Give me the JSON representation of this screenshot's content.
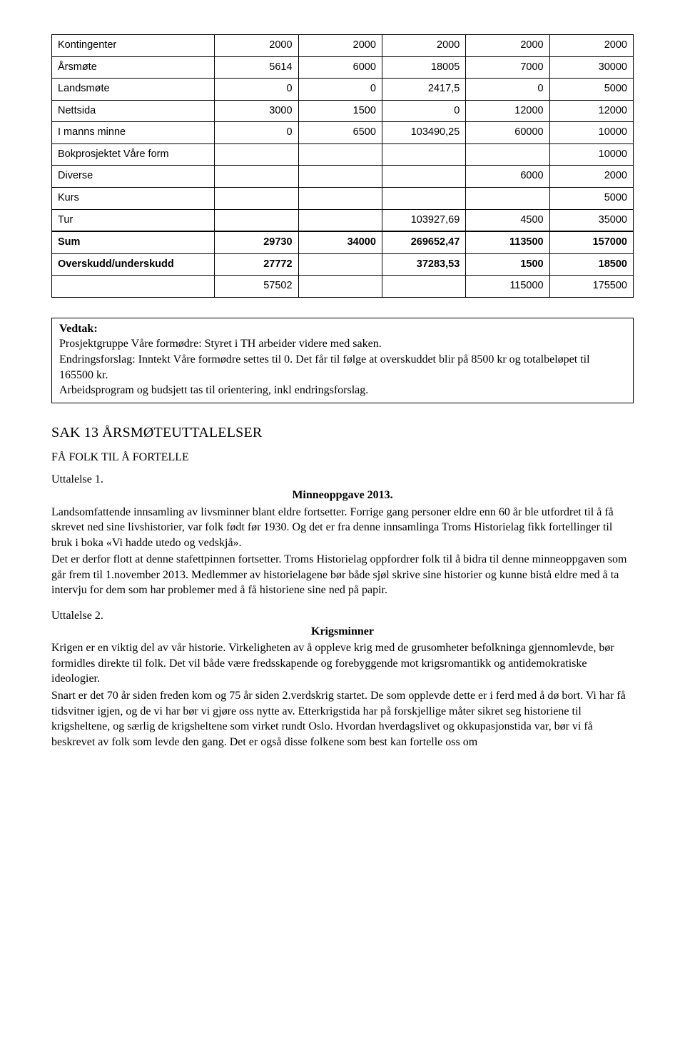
{
  "table": {
    "col_widths_pct": [
      28,
      14.4,
      14.4,
      14.4,
      14.4,
      14.4
    ],
    "rows": [
      {
        "label": "Kontingenter",
        "cells": [
          "2000",
          "2000",
          "2000",
          "2000",
          "2000"
        ]
      },
      {
        "label": "Årsmøte",
        "cells": [
          "5614",
          "6000",
          "18005",
          "7000",
          "30000"
        ]
      },
      {
        "label": "Landsmøte",
        "cells": [
          "0",
          "0",
          "2417,5",
          "0",
          "5000"
        ]
      },
      {
        "label": "Nettsida",
        "cells": [
          "3000",
          "1500",
          "0",
          "12000",
          "12000"
        ]
      },
      {
        "label": "I manns minne",
        "cells": [
          "0",
          "6500",
          "103490,25",
          "60000",
          "10000"
        ]
      },
      {
        "label": "Bokprosjektet Våre form",
        "cells": [
          "",
          "",
          "",
          "",
          "10000"
        ]
      },
      {
        "label": "Diverse",
        "cells": [
          "",
          "",
          "",
          "6000",
          "2000"
        ]
      },
      {
        "label": "Kurs",
        "cells": [
          "",
          "",
          "",
          "",
          "5000"
        ]
      },
      {
        "label": "Tur",
        "cells": [
          "",
          "",
          "103927,69",
          "4500",
          "35000"
        ]
      }
    ],
    "sum": {
      "label": "Sum",
      "cells": [
        "29730",
        "34000",
        "269652,47",
        "113500",
        "157000"
      ]
    },
    "over": {
      "label": "Overskudd/underskudd",
      "cells": [
        "27772",
        "",
        "37283,53",
        "1500",
        "18500"
      ]
    },
    "total": {
      "label": "",
      "cells": [
        "57502",
        "",
        "",
        "115000",
        "175500"
      ]
    }
  },
  "vedtak": {
    "head": "Vedtak:",
    "lines": [
      "Prosjektgruppe Våre formødre: Styret i TH arbeider videre med saken.",
      "Endringsforslag: Inntekt Våre formødre settes til 0. Det får til følge at overskuddet blir på 8500 kr og totalbeløpet til 165500 kr.",
      "Arbeidsprogram og budsjett tas til orientering, inkl endringsforslag."
    ]
  },
  "sak_title": "SAK 13 ÅRSMØTEUTTALELSER",
  "sub_title": "FÅ FOLK TIL Å FORTELLE",
  "utt1": {
    "label": "Uttalelse 1.",
    "title": "Minneoppgave 2013.",
    "paras": [
      "Landsomfattende innsamling av livsminner blant eldre fortsetter. Forrige gang personer eldre enn 60 år ble utfordret til å få skrevet ned sine livshistorier, var folk født før 1930. Og det er fra denne innsamlinga Troms Historielag fikk fortellinger til bruk i boka «Vi hadde utedo og vedskjå».",
      "Det er derfor flott at denne stafettpinnen fortsetter. Troms Historielag oppfordrer folk til å bidra til denne minneoppgaven som går frem til 1.november 2013. Medlemmer av historielagene bør både sjøl skrive sine historier og kunne bistå eldre med å ta intervju for dem som har problemer med å få historiene sine ned på papir."
    ]
  },
  "utt2": {
    "label": "Uttalelse 2.",
    "title": "Krigsminner",
    "paras": [
      "Krigen er en viktig del av vår historie. Virkeligheten av å oppleve krig med de grusomheter befolkninga gjennomlevde, bør formidles direkte til folk. Det vil både være fredsskapende og forebyggende mot krigsromantikk og antidemokratiske ideologier.",
      "Snart er det 70 år siden freden kom og 75 år siden 2.verdskrig startet. De som opplevde dette er i ferd med å dø bort. Vi har få tidsvitner igjen, og de vi har bør vi gjøre oss nytte av. Etterkrigstida har på forskjellige måter sikret seg historiene til krigsheltene, og særlig de krigsheltene som virket rundt Oslo. Hvordan hverdagslivet og okkupasjonstida var, bør vi få beskrevet av folk som levde den gang. Det er også disse folkene som best kan fortelle oss om"
    ]
  }
}
